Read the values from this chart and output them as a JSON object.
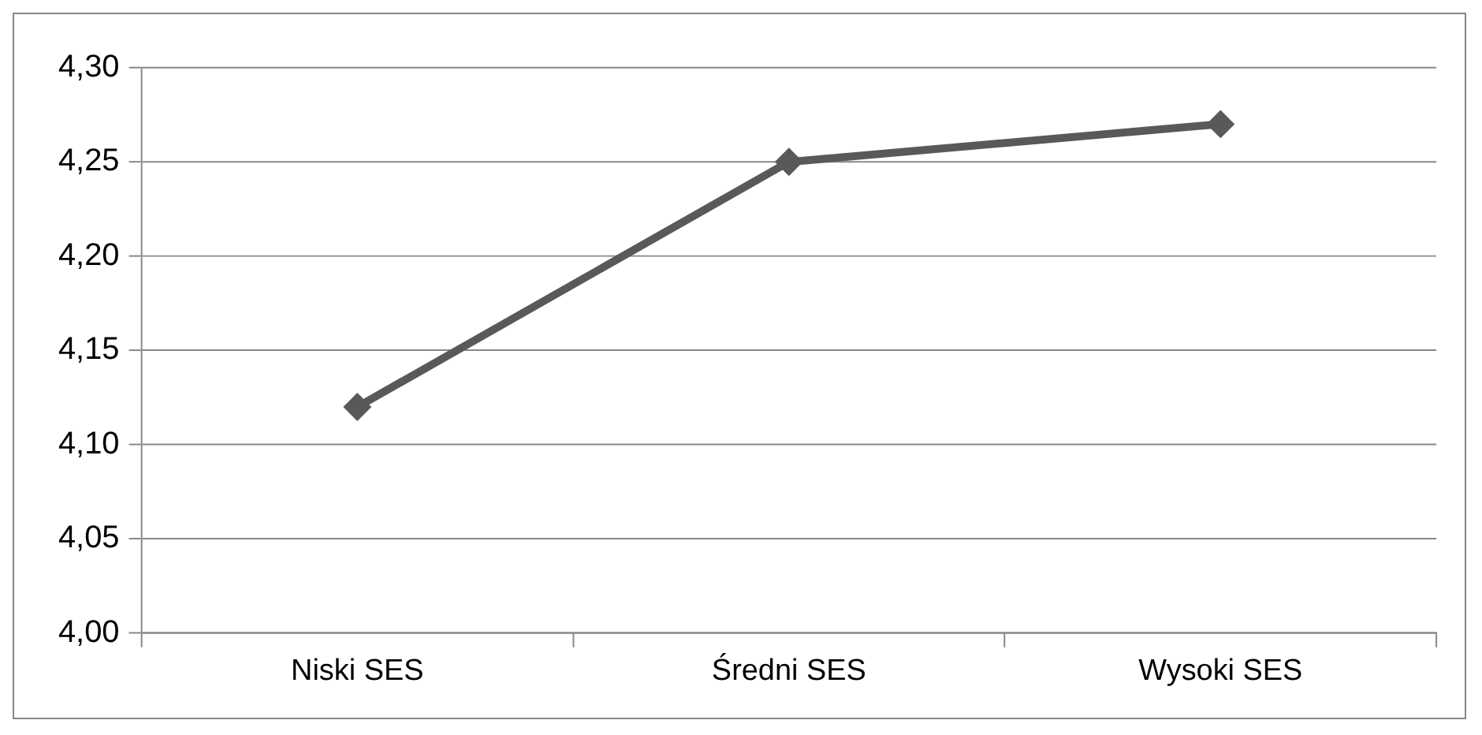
{
  "chart_data": {
    "type": "line",
    "categories": [
      "Niski SES",
      "Średni SES",
      "Wysoki SES"
    ],
    "series": [
      {
        "color": "#595959",
        "values": [
          4.12,
          4.25,
          4.27
        ]
      }
    ],
    "ylim": [
      4.0,
      4.3
    ],
    "yticks": [
      {
        "value": 4.0,
        "label": "4,00"
      },
      {
        "value": 4.05,
        "label": "4,05"
      },
      {
        "value": 4.1,
        "label": "4,10"
      },
      {
        "value": 4.15,
        "label": "4,15"
      },
      {
        "value": 4.2,
        "label": "4,20"
      },
      {
        "value": 4.25,
        "label": "4,25"
      },
      {
        "value": 4.3,
        "label": "4,30"
      }
    ],
    "grid": "y",
    "legend": false,
    "marker": "diamond",
    "line_style": "solid"
  }
}
